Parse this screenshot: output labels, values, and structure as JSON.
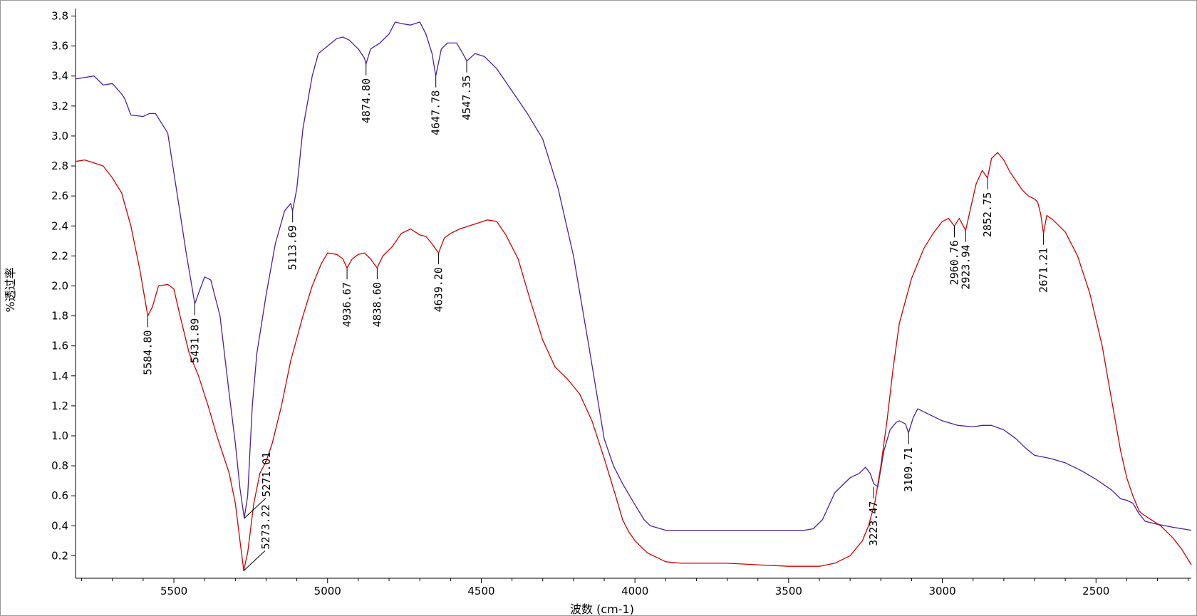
{
  "chart_data": {
    "type": "line",
    "title": "",
    "xlabel": "波数 (cm-1)",
    "ylabel": "%透过率",
    "xlim": [
      5820,
      2190
    ],
    "ylim": [
      0.05,
      3.85
    ],
    "x_reversed": true,
    "x_ticks": [
      5500,
      5000,
      4500,
      4000,
      3500,
      3000,
      2500
    ],
    "y_ticks": [
      0.2,
      0.4,
      0.6,
      0.8,
      1.0,
      1.2,
      1.4,
      1.6,
      1.8,
      2.0,
      2.2,
      2.4,
      2.6,
      2.8,
      3.0,
      3.2,
      3.4,
      3.6,
      3.8
    ],
    "y_tick_labels": [
      "0.2",
      "0.4",
      "0.6",
      "0.8",
      "1.0",
      "1.2",
      "1.4",
      "1.6",
      "1.8",
      "2.0",
      "2.2",
      "2.4",
      "2.6",
      "2.8",
      "3.0",
      "3.2",
      "3.4",
      "3.6",
      "3.8"
    ],
    "grid": false,
    "legend": "none",
    "series": [
      {
        "color": "#4b1fa0",
        "x": [
          5820,
          5760,
          5730,
          5700,
          5670,
          5660,
          5640,
          5600,
          5580,
          5560,
          5520,
          5490,
          5460,
          5440,
          5432,
          5420,
          5400,
          5380,
          5350,
          5320,
          5300,
          5285,
          5271,
          5260,
          5245,
          5230,
          5200,
          5170,
          5140,
          5120,
          5114,
          5100,
          5080,
          5050,
          5030,
          5000,
          4970,
          4950,
          4930,
          4900,
          4880,
          4875,
          4860,
          4830,
          4800,
          4780,
          4760,
          4730,
          4700,
          4680,
          4660,
          4648,
          4630,
          4610,
          4580,
          4560,
          4547,
          4520,
          4490,
          4450,
          4400,
          4350,
          4300,
          4250,
          4200,
          4150,
          4100,
          4070,
          4040,
          4000,
          3970,
          3950,
          3900,
          3850,
          3800,
          3700,
          3600,
          3500,
          3450,
          3420,
          3390,
          3350,
          3300,
          3270,
          3250,
          3235,
          3223,
          3210,
          3190,
          3170,
          3150,
          3140,
          3120,
          3110,
          3095,
          3080,
          3050,
          3000,
          2950,
          2900,
          2870,
          2840,
          2800,
          2760,
          2730,
          2700,
          2650,
          2600,
          2550,
          2500,
          2450,
          2420,
          2400,
          2380,
          2360,
          2340,
          2300,
          2250,
          2190
        ],
        "y": [
          3.38,
          3.4,
          3.34,
          3.35,
          3.28,
          3.25,
          3.14,
          3.13,
          3.15,
          3.15,
          3.02,
          2.62,
          2.22,
          1.98,
          1.88,
          1.95,
          2.06,
          2.04,
          1.8,
          1.28,
          0.95,
          0.65,
          0.45,
          0.6,
          1.2,
          1.55,
          1.94,
          2.28,
          2.5,
          2.55,
          2.5,
          2.65,
          3.05,
          3.4,
          3.55,
          3.6,
          3.65,
          3.66,
          3.64,
          3.58,
          3.52,
          3.48,
          3.58,
          3.62,
          3.68,
          3.76,
          3.75,
          3.74,
          3.76,
          3.68,
          3.55,
          3.4,
          3.58,
          3.62,
          3.62,
          3.55,
          3.5,
          3.55,
          3.53,
          3.45,
          3.3,
          3.15,
          2.98,
          2.65,
          2.2,
          1.6,
          0.98,
          0.8,
          0.68,
          0.54,
          0.44,
          0.4,
          0.37,
          0.37,
          0.37,
          0.37,
          0.37,
          0.37,
          0.37,
          0.38,
          0.44,
          0.62,
          0.72,
          0.75,
          0.79,
          0.75,
          0.68,
          0.66,
          0.9,
          1.04,
          1.09,
          1.1,
          1.08,
          1.02,
          1.12,
          1.18,
          1.15,
          1.1,
          1.07,
          1.06,
          1.07,
          1.07,
          1.04,
          0.98,
          0.92,
          0.87,
          0.85,
          0.82,
          0.77,
          0.71,
          0.64,
          0.58,
          0.57,
          0.55,
          0.48,
          0.43,
          0.41,
          0.39,
          0.37
        ]
      },
      {
        "color": "#d00000",
        "x": [
          5820,
          5790,
          5760,
          5730,
          5700,
          5670,
          5640,
          5610,
          5590,
          5585,
          5570,
          5550,
          5520,
          5500,
          5480,
          5450,
          5420,
          5390,
          5360,
          5320,
          5300,
          5285,
          5275,
          5273,
          5260,
          5240,
          5220,
          5200,
          5180,
          5150,
          5120,
          5080,
          5050,
          5020,
          5000,
          4970,
          4950,
          4937,
          4920,
          4900,
          4880,
          4860,
          4839,
          4820,
          4790,
          4760,
          4730,
          4700,
          4680,
          4660,
          4639,
          4620,
          4600,
          4570,
          4540,
          4510,
          4480,
          4450,
          4420,
          4380,
          4340,
          4300,
          4260,
          4220,
          4180,
          4140,
          4100,
          4060,
          4040,
          4020,
          4000,
          3980,
          3960,
          3940,
          3920,
          3900,
          3850,
          3800,
          3700,
          3600,
          3500,
          3450,
          3400,
          3350,
          3300,
          3260,
          3240,
          3220,
          3200,
          3180,
          3160,
          3140,
          3100,
          3060,
          3030,
          3000,
          2980,
          2961,
          2945,
          2924,
          2910,
          2890,
          2870,
          2853,
          2840,
          2820,
          2800,
          2780,
          2760,
          2740,
          2720,
          2700,
          2690,
          2680,
          2671,
          2660,
          2640,
          2600,
          2560,
          2520,
          2480,
          2450,
          2420,
          2400,
          2380,
          2360,
          2350,
          2320,
          2290,
          2250,
          2220,
          2190
        ],
        "y": [
          2.83,
          2.84,
          2.82,
          2.8,
          2.72,
          2.62,
          2.4,
          2.1,
          1.86,
          1.8,
          1.86,
          2.0,
          2.01,
          1.98,
          1.8,
          1.55,
          1.4,
          1.21,
          1.0,
          0.75,
          0.55,
          0.3,
          0.14,
          0.1,
          0.22,
          0.55,
          0.75,
          0.83,
          0.95,
          1.2,
          1.5,
          1.8,
          2.0,
          2.15,
          2.22,
          2.21,
          2.18,
          2.12,
          2.18,
          2.21,
          2.22,
          2.18,
          2.12,
          2.2,
          2.26,
          2.35,
          2.38,
          2.34,
          2.33,
          2.28,
          2.22,
          2.32,
          2.35,
          2.38,
          2.4,
          2.42,
          2.44,
          2.43,
          2.34,
          2.18,
          1.9,
          1.64,
          1.46,
          1.38,
          1.28,
          1.1,
          0.85,
          0.58,
          0.44,
          0.36,
          0.3,
          0.26,
          0.22,
          0.2,
          0.18,
          0.16,
          0.15,
          0.15,
          0.15,
          0.14,
          0.13,
          0.13,
          0.13,
          0.15,
          0.2,
          0.3,
          0.4,
          0.55,
          0.8,
          1.1,
          1.45,
          1.75,
          2.05,
          2.25,
          2.35,
          2.43,
          2.45,
          2.4,
          2.45,
          2.37,
          2.5,
          2.68,
          2.77,
          2.72,
          2.85,
          2.89,
          2.84,
          2.76,
          2.7,
          2.64,
          2.6,
          2.58,
          2.56,
          2.48,
          2.35,
          2.47,
          2.44,
          2.36,
          2.2,
          1.95,
          1.6,
          1.25,
          0.9,
          0.72,
          0.6,
          0.5,
          0.48,
          0.44,
          0.4,
          0.32,
          0.24,
          0.14
        ]
      }
    ],
    "annotations": [
      {
        "label": "5584.80",
        "x": 5584.8,
        "y": 1.8
      },
      {
        "label": "5431.89",
        "x": 5431.89,
        "y": 1.88
      },
      {
        "label": "5271.01",
        "x": 5271.01,
        "y": 0.45,
        "leader": true
      },
      {
        "label": "5273.22",
        "x": 5273.22,
        "y": 0.1,
        "leader": true
      },
      {
        "label": "5113.69",
        "x": 5113.69,
        "y": 2.5
      },
      {
        "label": "4874.80",
        "x": 4874.8,
        "y": 3.48
      },
      {
        "label": "4647.78",
        "x": 4647.78,
        "y": 3.4
      },
      {
        "label": "4547.35",
        "x": 4547.35,
        "y": 3.5
      },
      {
        "label": "4936.67",
        "x": 4936.67,
        "y": 2.12
      },
      {
        "label": "4838.60",
        "x": 4838.6,
        "y": 2.12
      },
      {
        "label": "4639.20",
        "x": 4639.2,
        "y": 2.22
      },
      {
        "label": "3223.47",
        "x": 3223.47,
        "y": 0.66
      },
      {
        "label": "3109.71",
        "x": 3109.71,
        "y": 1.02
      },
      {
        "label": "2960.76",
        "x": 2960.76,
        "y": 2.4
      },
      {
        "label": "2923.94",
        "x": 2923.94,
        "y": 2.37
      },
      {
        "label": "2852.75",
        "x": 2852.75,
        "y": 2.72
      },
      {
        "label": "2671.21",
        "x": 2671.21,
        "y": 2.35
      }
    ]
  }
}
